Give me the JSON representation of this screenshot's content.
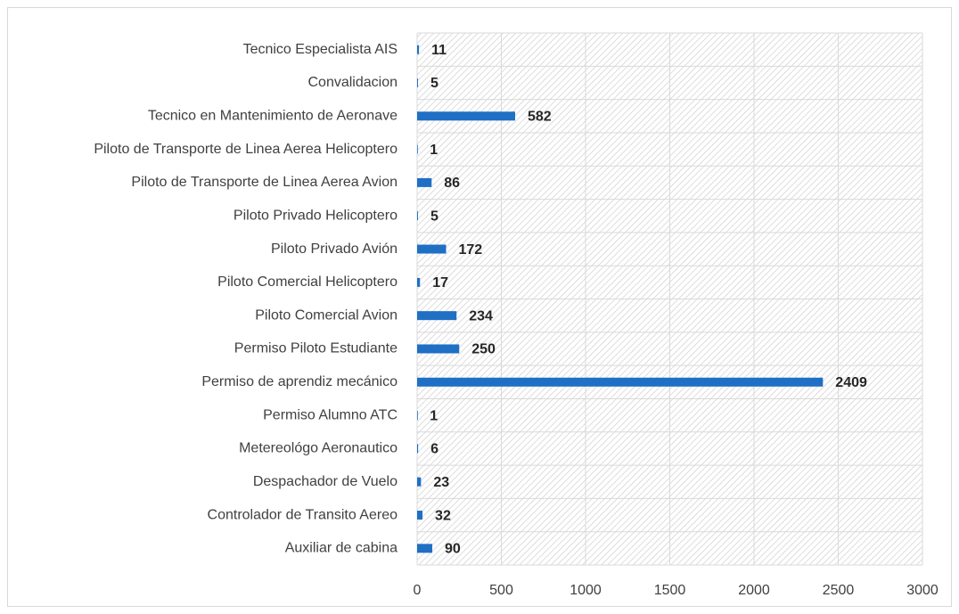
{
  "chart_data": {
    "type": "bar",
    "orientation": "horizontal",
    "categories": [
      "Tecnico Especialista AIS",
      "Convalidacion",
      "Tecnico en Mantenimiento de Aeronave",
      "Piloto de Transporte de Linea Aerea Helicoptero",
      "Piloto de Transporte de Linea Aerea Avion",
      "Piloto Privado Helicoptero",
      "Piloto Privado Avión",
      "Piloto Comercial Helicoptero",
      "Piloto Comercial Avion",
      "Permiso Piloto Estudiante",
      "Permiso de aprendiz mecánico",
      "Permiso Alumno ATC",
      "Metereológo Aeronautico",
      "Despachador de Vuelo",
      "Controlador de Transito Aereo",
      "Auxiliar de cabina"
    ],
    "values": [
      11,
      5,
      582,
      1,
      86,
      5,
      172,
      17,
      234,
      250,
      2409,
      1,
      6,
      23,
      32,
      90
    ],
    "color": "#1f6fc5",
    "xlim": [
      0,
      3000
    ],
    "xticks": [
      0,
      500,
      1000,
      1500,
      2000,
      2500,
      3000
    ],
    "grid": true
  }
}
